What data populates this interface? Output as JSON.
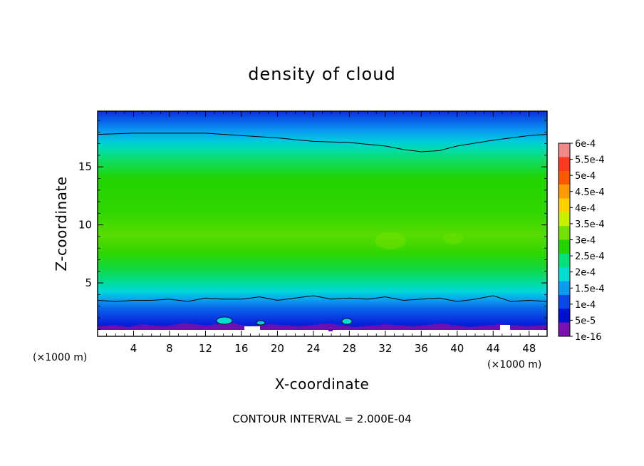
{
  "chart_data": {
    "type": "heatmap",
    "title": "density of cloud",
    "xlabel": "X-coordinate",
    "ylabel": "Z-coordinate",
    "x_unit": "(×1000 m)",
    "y_unit": "(×1000 m)",
    "xlim": [
      0,
      50
    ],
    "ylim": [
      0.4,
      19.8
    ],
    "x_ticks": [
      4,
      8,
      12,
      16,
      20,
      24,
      28,
      32,
      36,
      40,
      44,
      48
    ],
    "y_ticks": [
      5,
      10,
      15
    ],
    "footer": "CONTOUR INTERVAL = 2.000E-04",
    "colorbar": {
      "labels": [
        "6e-4",
        "5.5e-4",
        "5e-4",
        "4.5e-4",
        "4e-4",
        "3.5e-4",
        "3e-4",
        "2.5e-4",
        "2e-4",
        "1.5e-4",
        "1e-4",
        "5e-5",
        "1e-16"
      ],
      "colors": [
        "#f08a8a",
        "#ff3a20",
        "#ff5a00",
        "#ff9a00",
        "#ffd000",
        "#c8ef00",
        "#72e000",
        "#22d400",
        "#00e07c",
        "#00dcd0",
        "#0a9cf0",
        "#0a48e6",
        "#0010d0",
        "#7a10b0"
      ]
    },
    "contour_lines": [
      {
        "level": "2.000E-04",
        "x": [
          0,
          4,
          8,
          12,
          16,
          20,
          24,
          28,
          32,
          34,
          36,
          38,
          40,
          44,
          48,
          50
        ],
        "z": [
          17.8,
          17.9,
          17.9,
          17.9,
          17.7,
          17.5,
          17.2,
          17.1,
          16.8,
          16.5,
          16.3,
          16.4,
          16.8,
          17.3,
          17.7,
          17.8
        ]
      },
      {
        "level": "2.000E-04",
        "x": [
          0,
          2,
          4,
          6,
          8,
          10,
          12,
          14,
          16,
          18,
          20,
          22,
          24,
          26,
          28,
          30,
          32,
          34,
          36,
          38,
          40,
          42,
          44,
          46,
          48,
          50
        ],
        "z": [
          3.5,
          3.4,
          3.5,
          3.5,
          3.6,
          3.4,
          3.7,
          3.6,
          3.6,
          3.8,
          3.5,
          3.7,
          3.9,
          3.6,
          3.7,
          3.6,
          3.8,
          3.5,
          3.6,
          3.7,
          3.4,
          3.6,
          3.9,
          3.4,
          3.5,
          3.4
        ]
      }
    ]
  }
}
